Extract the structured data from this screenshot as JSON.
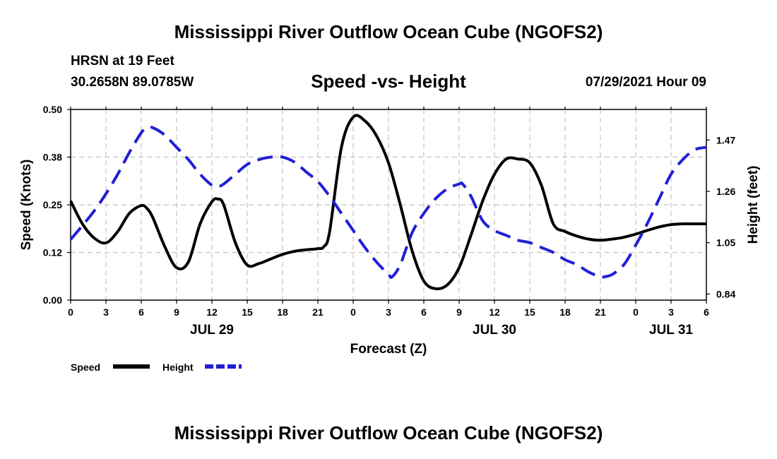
{
  "header": {
    "title": "Mississippi River Outflow Ocean Cube (NGOFS2)",
    "station": "HRSN at 19 Feet",
    "coordinates": "30.2658N  89.0785W",
    "timestamp": "07/29/2021 Hour 09"
  },
  "footer": {
    "title": "Mississippi River Outflow Ocean Cube (NGOFS2)"
  },
  "chart_data": {
    "type": "line",
    "title": "Speed -vs- Height",
    "xlabel": "Forecast (Z)",
    "ylabel": "Speed (Knots)",
    "y2label": "Height (feet)",
    "xlim": [
      0,
      54
    ],
    "ylim": [
      0,
      0.5
    ],
    "y2lim": [
      0.815,
      1.595
    ],
    "grid": true,
    "x_ticks": [
      {
        "x": 0,
        "label": "0"
      },
      {
        "x": 3,
        "label": "3"
      },
      {
        "x": 6,
        "label": "6"
      },
      {
        "x": 9,
        "label": "9"
      },
      {
        "x": 12,
        "label": "12"
      },
      {
        "x": 15,
        "label": "15"
      },
      {
        "x": 18,
        "label": "18"
      },
      {
        "x": 21,
        "label": "21"
      },
      {
        "x": 24,
        "label": "0"
      },
      {
        "x": 27,
        "label": "3"
      },
      {
        "x": 30,
        "label": "6"
      },
      {
        "x": 33,
        "label": "9"
      },
      {
        "x": 36,
        "label": "12"
      },
      {
        "x": 39,
        "label": "15"
      },
      {
        "x": 42,
        "label": "18"
      },
      {
        "x": 45,
        "label": "21"
      },
      {
        "x": 48,
        "label": "0"
      },
      {
        "x": 51,
        "label": "3"
      },
      {
        "x": 54,
        "label": "6"
      }
    ],
    "date_labels": [
      {
        "x": 12,
        "label": "JUL 29"
      },
      {
        "x": 36,
        "label": "JUL 30"
      },
      {
        "x": 51,
        "label": "JUL 31"
      }
    ],
    "y_ticks": [
      {
        "y": 0.0,
        "label": "0.00"
      },
      {
        "y": 0.125,
        "label": "0.12"
      },
      {
        "y": 0.25,
        "label": "0.25"
      },
      {
        "y": 0.375,
        "label": "0.38"
      },
      {
        "y": 0.5,
        "label": "0.50"
      }
    ],
    "y2_ticks": [
      {
        "y": 0.84,
        "label": "0.84"
      },
      {
        "y": 1.05,
        "label": "1.05"
      },
      {
        "y": 1.26,
        "label": "1.26"
      },
      {
        "y": 1.47,
        "label": "1.47"
      }
    ],
    "series": [
      {
        "name": "Speed",
        "axis": "left",
        "color": "#000000",
        "style": "solid",
        "x": [
          0,
          1,
          2,
          3,
          4,
          5,
          6,
          6.5,
          7,
          8,
          9,
          10,
          11,
          12,
          12.5,
          13,
          14,
          15,
          16,
          17,
          18,
          19,
          20,
          21,
          21.5,
          22,
          23,
          24,
          25,
          26,
          27,
          28,
          29,
          30,
          31,
          32,
          33,
          34,
          35,
          36,
          37,
          38,
          39,
          40,
          41,
          42,
          43,
          44,
          45,
          46,
          47,
          48,
          49,
          50,
          51,
          52,
          53,
          54
        ],
        "values": [
          0.26,
          0.2,
          0.163,
          0.15,
          0.18,
          0.228,
          0.248,
          0.24,
          0.215,
          0.14,
          0.085,
          0.1,
          0.2,
          0.258,
          0.265,
          0.25,
          0.15,
          0.092,
          0.096,
          0.108,
          0.12,
          0.128,
          0.132,
          0.135,
          0.14,
          0.18,
          0.4,
          0.48,
          0.47,
          0.43,
          0.36,
          0.25,
          0.13,
          0.05,
          0.03,
          0.04,
          0.085,
          0.17,
          0.26,
          0.33,
          0.37,
          0.37,
          0.36,
          0.3,
          0.2,
          0.18,
          0.168,
          0.16,
          0.157,
          0.16,
          0.165,
          0.173,
          0.183,
          0.192,
          0.198,
          0.2,
          0.2,
          0.2
        ]
      },
      {
        "name": "Height",
        "axis": "right",
        "color": "#1f1fd6",
        "style": "dashed",
        "x": [
          0,
          1,
          2,
          3,
          4,
          5,
          6,
          6.5,
          7,
          8,
          9,
          10,
          11,
          12,
          12.5,
          13,
          14,
          15,
          16,
          17,
          18,
          19,
          20,
          21,
          22,
          23,
          24,
          25,
          26,
          27,
          27.3,
          28,
          29,
          30,
          31,
          32,
          33,
          33.3,
          34,
          35,
          36,
          37,
          38,
          39,
          40,
          41,
          42,
          43,
          44,
          45,
          45.3,
          46,
          47,
          48,
          49,
          50,
          51,
          52,
          53,
          54
        ],
        "values": [
          1.063,
          1.12,
          1.18,
          1.25,
          1.33,
          1.42,
          1.5,
          1.52,
          1.52,
          1.49,
          1.44,
          1.39,
          1.33,
          1.285,
          1.28,
          1.29,
          1.33,
          1.37,
          1.39,
          1.4,
          1.4,
          1.38,
          1.34,
          1.3,
          1.24,
          1.17,
          1.1,
          1.03,
          0.97,
          0.92,
          0.91,
          0.96,
          1.09,
          1.17,
          1.23,
          1.27,
          1.29,
          1.29,
          1.24,
          1.14,
          1.1,
          1.08,
          1.06,
          1.05,
          1.03,
          1.01,
          0.98,
          0.96,
          0.93,
          0.91,
          0.91,
          0.92,
          0.96,
          1.04,
          1.13,
          1.23,
          1.33,
          1.39,
          1.43,
          1.44
        ]
      }
    ],
    "legend": [
      {
        "label": "Speed",
        "color": "#000000",
        "style": "solid"
      },
      {
        "label": "Height",
        "color": "#1f1fd6",
        "style": "dashed"
      }
    ],
    "legend_position": "bottom-left"
  }
}
